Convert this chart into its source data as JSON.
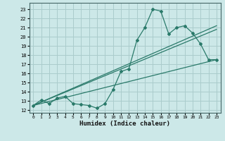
{
  "xlabel": "Humidex (Indice chaleur)",
  "xlim": [
    -0.5,
    23.5
  ],
  "ylim": [
    11.7,
    23.7
  ],
  "yticks": [
    12,
    13,
    14,
    15,
    16,
    17,
    18,
    19,
    20,
    21,
    22,
    23
  ],
  "xticks": [
    0,
    1,
    2,
    3,
    4,
    5,
    6,
    7,
    8,
    9,
    10,
    11,
    12,
    13,
    14,
    15,
    16,
    17,
    18,
    19,
    20,
    21,
    22,
    23
  ],
  "bg_color": "#cce8e8",
  "grid_color": "#aacccc",
  "line_color": "#2a7a6a",
  "zigzag_x": [
    0,
    1,
    2,
    3,
    4,
    5,
    6,
    7,
    8,
    9,
    10,
    11,
    12,
    13,
    14,
    15,
    16,
    17,
    18,
    19,
    20,
    21,
    22,
    23
  ],
  "zigzag_y": [
    12.5,
    13.1,
    12.7,
    13.3,
    13.5,
    12.7,
    12.6,
    12.5,
    12.2,
    12.7,
    14.2,
    16.2,
    16.5,
    19.6,
    21.0,
    23.0,
    22.8,
    20.3,
    21.0,
    21.2,
    20.4,
    19.2,
    17.5,
    17.5
  ],
  "line1_x": [
    0,
    23
  ],
  "line1_y": [
    12.5,
    17.5
  ],
  "line2_x": [
    0,
    23
  ],
  "line2_y": [
    12.5,
    20.8
  ],
  "line3_x": [
    0,
    23
  ],
  "line3_y": [
    12.5,
    21.2
  ]
}
